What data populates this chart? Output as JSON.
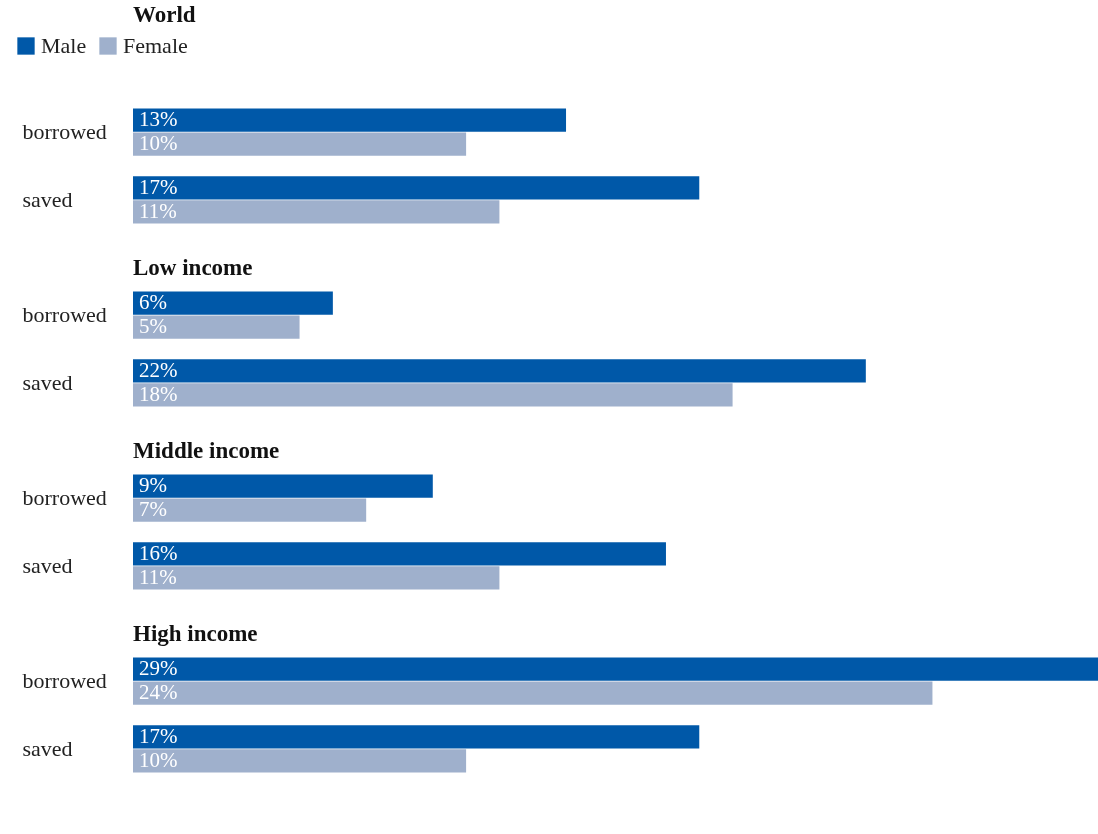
{
  "chart_data": [
    {
      "type": "bar",
      "orientation": "horizontal",
      "title": "World",
      "categories": [
        "borrowed",
        "saved"
      ],
      "legend": "top left",
      "series": [
        {
          "name": "Male",
          "color": "#0058a8",
          "values": [
            13,
            17
          ],
          "value_labels": [
            "13%",
            "17%"
          ]
        },
        {
          "name": "Female",
          "color": "#9fb0cc",
          "values": [
            10,
            11
          ],
          "value_labels": [
            "10%",
            "11%"
          ]
        }
      ]
    },
    {
      "type": "bar",
      "orientation": "horizontal",
      "title": "Low income",
      "categories": [
        "borrowed",
        "saved"
      ],
      "series": [
        {
          "color": "#0058a8",
          "values": [
            6,
            22
          ],
          "value_labels": [
            "6%",
            "22%"
          ]
        },
        {
          "color": "#9fb0cc",
          "values": [
            5,
            18
          ],
          "value_labels": [
            "5%",
            "18%"
          ]
        }
      ]
    },
    {
      "type": "bar",
      "orientation": "horizontal",
      "title": "Middle income",
      "categories": [
        "borrowed",
        "saved"
      ],
      "series": [
        {
          "color": "#0058a8",
          "values": [
            9,
            16
          ],
          "value_labels": [
            "9%",
            "16%"
          ]
        },
        {
          "color": "#9fb0cc",
          "values": [
            7,
            11
          ],
          "value_labels": [
            "7%",
            "11%"
          ]
        }
      ]
    },
    {
      "type": "bar",
      "orientation": "horizontal",
      "title": "High income",
      "categories": [
        "borrowed",
        "saved"
      ],
      "series": [
        {
          "color": "#0058a8",
          "values": [
            29,
            17
          ],
          "value_labels": [
            "29%",
            "17%"
          ]
        },
        {
          "color": "#9fb0cc",
          "values": [
            24,
            10
          ],
          "value_labels": [
            "24%",
            "10%"
          ]
        }
      ]
    }
  ]
}
